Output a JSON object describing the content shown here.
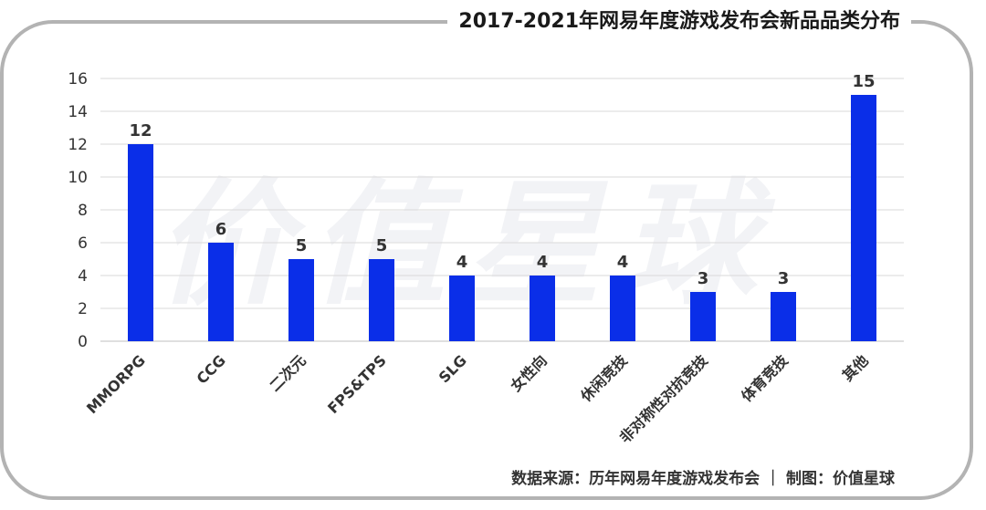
{
  "title": "2017-2021年网易年度游戏发布会新品品类分布",
  "watermark": "价值星球",
  "source": "数据来源：历年网易年度游戏发布会 ｜ 制图：价值星球",
  "colors": {
    "bar": "#0a2ee8",
    "grid": "#d9d9d9",
    "frame": "#b3b3b3"
  },
  "chart_data": {
    "type": "bar",
    "categories": [
      "MMORPG",
      "CCG",
      "二次元",
      "FPS&TPS",
      "SLG",
      "女性向",
      "休闲竞技",
      "非对称性对抗竞技",
      "体育竞技",
      "其他"
    ],
    "values": [
      12,
      6,
      5,
      5,
      4,
      4,
      4,
      3,
      3,
      15
    ],
    "data_labels": [
      "12",
      "6",
      "5",
      "5",
      "4",
      "4",
      "4",
      "3",
      "3",
      "15"
    ],
    "yticks": [
      "0",
      "2",
      "4",
      "6",
      "8",
      "10",
      "12",
      "14",
      "16"
    ],
    "ylim": [
      0,
      16
    ],
    "grid": true
  }
}
